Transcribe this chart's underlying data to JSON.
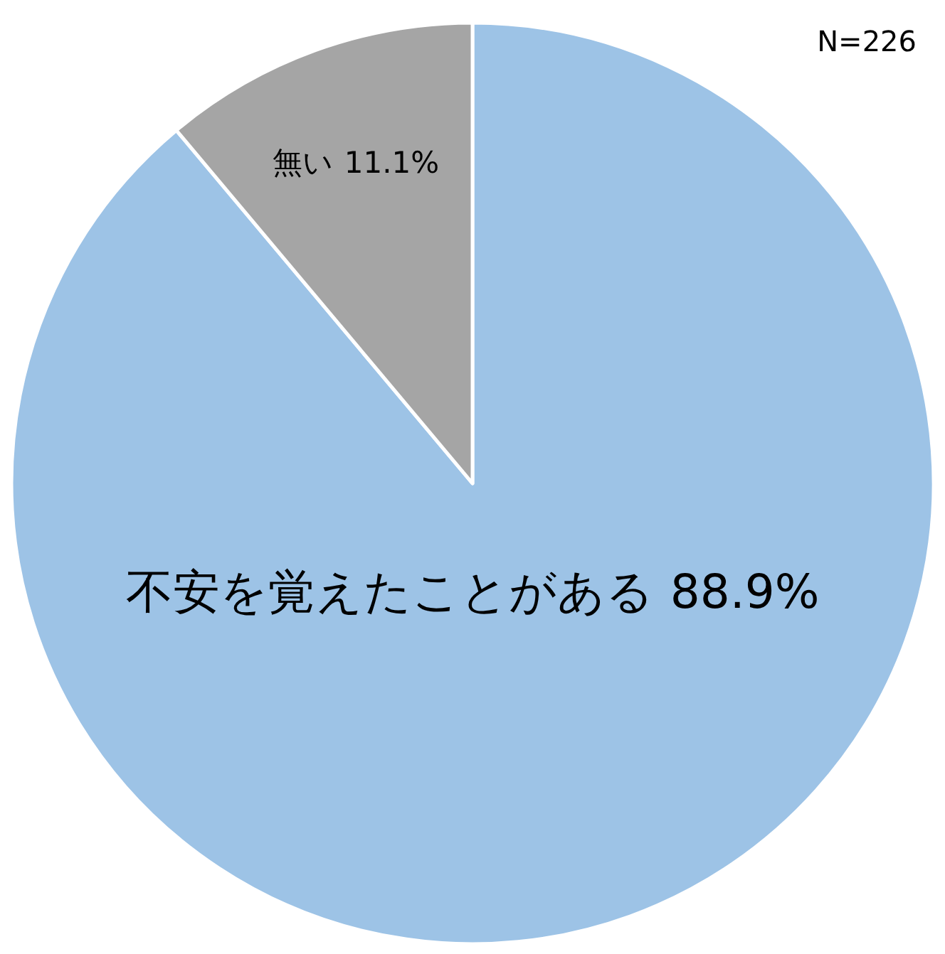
{
  "chart_data": {
    "type": "pie",
    "categories": [
      "不安を覚えたことがある",
      "無い"
    ],
    "values": [
      88.9,
      11.1
    ],
    "colors": [
      "#9dc3e6",
      "#a5a5a5"
    ],
    "value_labels": [
      "88.9%",
      "11.1%"
    ],
    "annotations": [
      "N=226"
    ]
  }
}
